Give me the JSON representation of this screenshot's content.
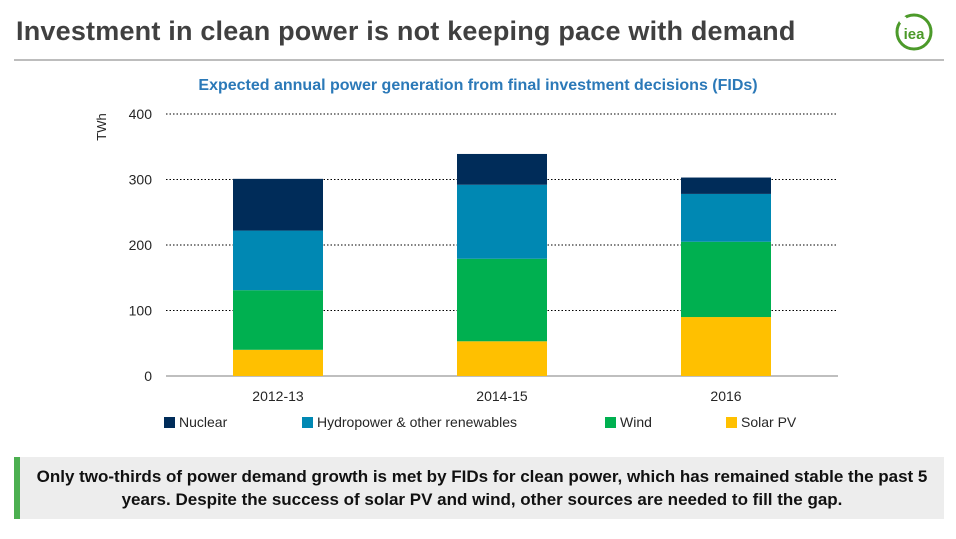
{
  "slide": {
    "title": "Investment in clean power is not keeping pace with demand",
    "logo_text": "iea"
  },
  "callout": {
    "text": "Only two-thirds of power demand growth is met by FIDs for clean power, which has remained stable the past 5 years. Despite the success of solar PV and wind, other sources are needed to fill the gap."
  },
  "chart_data": {
    "type": "bar",
    "stacked": true,
    "title": "Expected annual power generation from final investment decisions (FIDs)",
    "xlabel": "",
    "ylabel": "TWh",
    "ylim": [
      0,
      400
    ],
    "yticks": [
      0,
      100,
      200,
      300,
      400
    ],
    "grid": "dotted horizontal",
    "legend_position": "bottom",
    "categories": [
      "2012-13",
      "2014-15",
      "2016"
    ],
    "series": [
      {
        "name": "Solar PV",
        "color": "#ffc000",
        "values": [
          40,
          53,
          90
        ]
      },
      {
        "name": "Wind",
        "color": "#00b050",
        "values": [
          91,
          126,
          115
        ]
      },
      {
        "name": "Hydropower & other renewables",
        "color": "#0088b3",
        "values": [
          91,
          113,
          73
        ]
      },
      {
        "name": "Nuclear",
        "color": "#002c59",
        "values": [
          79,
          47,
          25
        ]
      }
    ],
    "legend_order": [
      "Nuclear",
      "Hydropower & other renewables",
      "Wind",
      "Solar PV"
    ]
  }
}
